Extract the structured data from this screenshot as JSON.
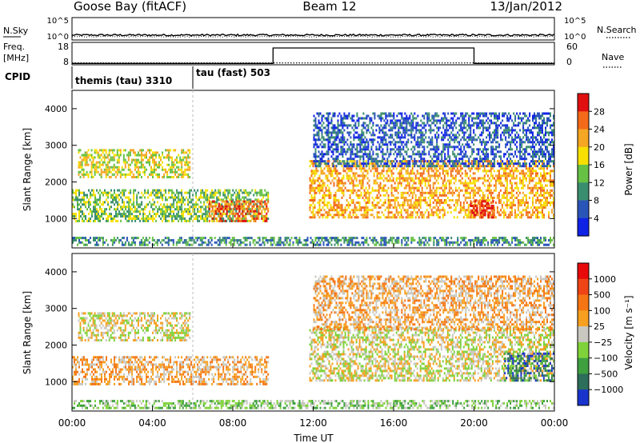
{
  "header": {
    "station": "Goose Bay (fitACF)",
    "beam": "Beam 12",
    "date": "13/Jan/2012"
  },
  "chart_data": [
    {
      "type": "line",
      "panel": "noise",
      "left_label": "N.Sky",
      "right_label": "N.Search",
      "left_ticks": [
        "10^5",
        "10^0"
      ],
      "right_ticks": [
        "10^5",
        "10^0"
      ],
      "series": [
        {
          "name": "N.Sky",
          "style": "solid",
          "level": 0.22
        },
        {
          "name": "N.Search",
          "style": "dotted",
          "level": 0.15
        }
      ]
    },
    {
      "type": "line",
      "panel": "freq-nave",
      "left_label_lines": [
        "Freq.",
        "[MHz]"
      ],
      "right_label": "Nave",
      "left_ticks": [
        "18",
        "8"
      ],
      "left_range": [
        8,
        18
      ],
      "right_ticks": [
        "60",
        "0"
      ],
      "right_range": [
        0,
        60
      ],
      "freq_segments": [
        {
          "t0": 0.0,
          "t1": 10.0,
          "value": 8.6
        },
        {
          "t0": 10.0,
          "t1": 20.0,
          "value": 15.5
        },
        {
          "t0": 20.0,
          "t1": 24.0,
          "value": 8.6
        }
      ],
      "nave_level": 5
    },
    {
      "type": "annotation",
      "panel": "cpid",
      "label": "CPID",
      "segments": [
        {
          "t0": 0.0,
          "text": "themis (tau) 3310"
        },
        {
          "t0": 6.0,
          "text": "tau (fast) 503"
        }
      ]
    },
    {
      "type": "heatmap",
      "panel": "power",
      "ylabel": "Slant Range [km]",
      "ylim": [
        200,
        4500
      ],
      "yticks": [
        1000,
        2000,
        3000,
        4000
      ],
      "xlim": [
        0,
        24
      ],
      "colorbar": {
        "label": "Power [dB]",
        "ticks": [
          "4",
          "8",
          "12",
          "16",
          "20",
          "24",
          "28"
        ],
        "colors": [
          "#1022e6",
          "#2a55b8",
          "#3a8e70",
          "#67c144",
          "#f7e000",
          "#f5a623",
          "#f26a1a",
          "#e01010"
        ]
      },
      "echo_regions": [
        {
          "t0": 0.0,
          "t1": 9.8,
          "r0": 900,
          "r1": 1800,
          "level": 3
        },
        {
          "t0": 0.3,
          "t1": 5.9,
          "r0": 2100,
          "r1": 2900,
          "level": 4
        },
        {
          "t0": 6.8,
          "t1": 9.8,
          "r0": 900,
          "r1": 1500,
          "level": 6
        },
        {
          "t0": 11.8,
          "t1": 24.0,
          "r0": 1000,
          "r1": 2600,
          "level": 5
        },
        {
          "t0": 19.8,
          "t1": 21.0,
          "r0": 1000,
          "r1": 1500,
          "level": 7
        },
        {
          "t0": 0.0,
          "t1": 24.0,
          "r0": 250,
          "r1": 500,
          "level": 2
        },
        {
          "t0": 12.0,
          "t1": 24.0,
          "r0": 2400,
          "r1": 3900,
          "level": 1
        }
      ]
    },
    {
      "type": "heatmap",
      "panel": "velocity",
      "ylabel": "Slant Range [km]",
      "ylim": [
        200,
        4500
      ],
      "yticks": [
        1000,
        2000,
        3000,
        4000
      ],
      "xlim": [
        0,
        24
      ],
      "xticks": [
        "00:00",
        "04:00",
        "08:00",
        "12:00",
        "16:00",
        "20:00",
        "00:00"
      ],
      "xlabel": "Time UT",
      "colorbar": {
        "label": "Velocity [m s⁻¹]",
        "ticks": [
          "1000",
          "500",
          "100",
          "25",
          "−25",
          "−100",
          "−500",
          "−1000"
        ],
        "colors": [
          "#1834cc",
          "#2c6e5a",
          "#3fa040",
          "#7fd23a",
          "#c8c8c0",
          "#f7a020",
          "#f57514",
          "#ef4416",
          "#e80a0a"
        ]
      },
      "echo_regions": [
        {
          "t0": 0.3,
          "t1": 5.9,
          "r0": 2100,
          "r1": 2900,
          "level": 4
        },
        {
          "t0": 0.0,
          "t1": 9.8,
          "r0": 900,
          "r1": 1700,
          "level": 5
        },
        {
          "t0": 11.8,
          "t1": 24.0,
          "r0": 1000,
          "r1": 2500,
          "level": 4
        },
        {
          "t0": 21.5,
          "t1": 24.0,
          "r0": 1000,
          "r1": 1800,
          "level": 1
        },
        {
          "t0": 0.0,
          "t1": 24.0,
          "r0": 250,
          "r1": 500,
          "level": 3
        },
        {
          "t0": 12.0,
          "t1": 24.0,
          "r0": 2400,
          "r1": 3900,
          "level": 5
        }
      ]
    }
  ]
}
